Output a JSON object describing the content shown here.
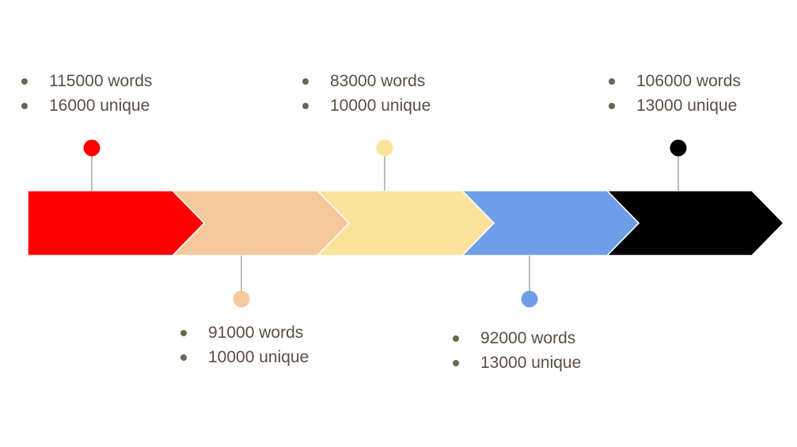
{
  "stages": [
    {
      "color": "#ff0000",
      "marker": "above",
      "lines": [
        "115000 words",
        "16000 unique"
      ]
    },
    {
      "color": "#f5c99c",
      "marker": "below",
      "lines": [
        "91000 words",
        "10000 unique"
      ]
    },
    {
      "color": "#fce39c",
      "marker": "above",
      "lines": [
        "83000 words",
        "10000 unique"
      ]
    },
    {
      "color": "#6f9ee8",
      "marker": "below",
      "lines": [
        "92000 words",
        "13000 unique"
      ]
    },
    {
      "color": "#000000",
      "marker": "above",
      "lines": [
        "106000 words",
        "13000 unique"
      ]
    }
  ],
  "colors": {
    "stem": "#7b7b7b",
    "text": "#5b4f40",
    "bullet": "#6e6350",
    "divider": "#ffffff"
  }
}
